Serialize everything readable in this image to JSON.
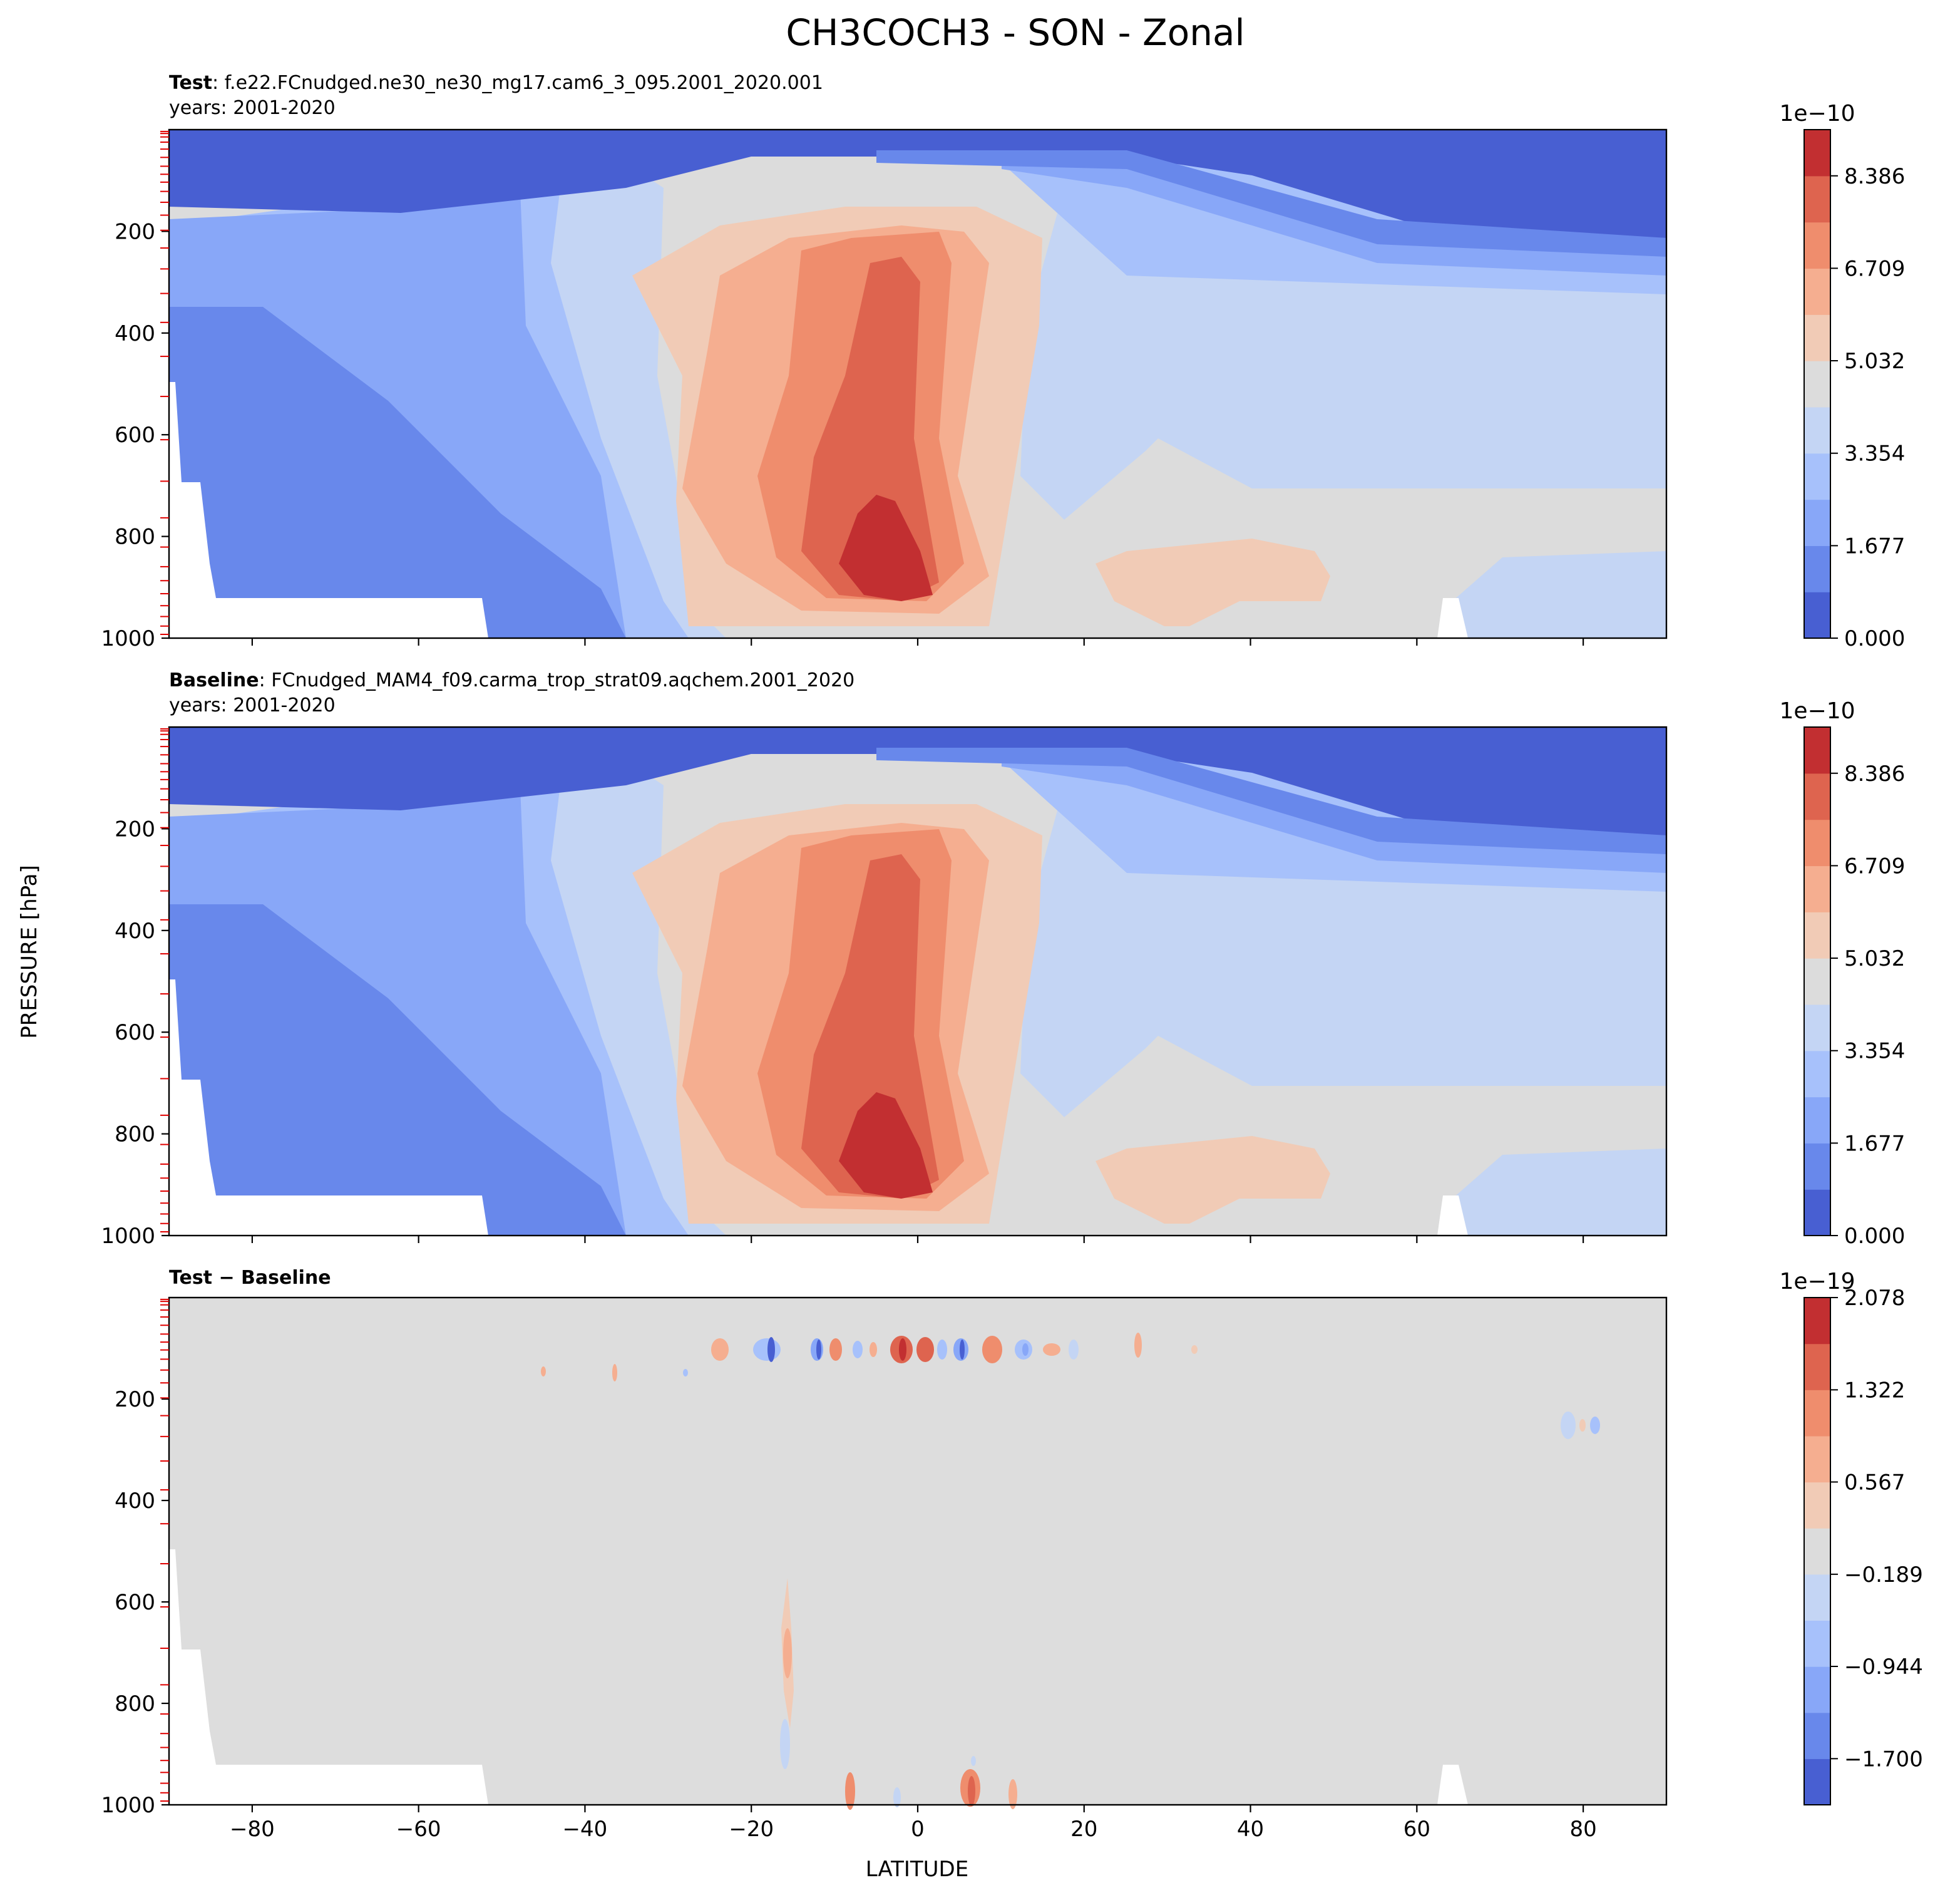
{
  "figure": {
    "title": "CH3COCH3 - SON - Zonal",
    "ylabel": "PRESSURE [hPa]",
    "xlabel": "LATITUDE"
  },
  "chart_data": [
    {
      "type": "heatmap",
      "panel": "test",
      "title_bold": "Test",
      "title_rest": ": f.e22.FCnudged.ne30_ne30_mg17.cam6_3_095.2001_2020.001",
      "subtitle": "years: 2001-2020",
      "x_ticks": [
        "−80",
        "−60",
        "−40",
        "−20",
        "0",
        "20",
        "40",
        "60",
        "80"
      ],
      "x_tick_values": [
        -80,
        -60,
        -40,
        -20,
        0,
        20,
        40,
        60,
        80
      ],
      "xlim": [
        -90,
        90
      ],
      "y_ticks": [
        "200",
        "400",
        "600",
        "800",
        "1000"
      ],
      "y_tick_values": [
        200,
        400,
        600,
        800,
        1000
      ],
      "ylim": [
        1000,
        0
      ],
      "colorbar": {
        "exponent": "1e−10",
        "tick_labels": [
          "0.000",
          "1.677",
          "3.354",
          "5.032",
          "6.709",
          "8.386"
        ],
        "tick_values": [
          0.0,
          1.677,
          3.354,
          5.032,
          6.709,
          8.386
        ],
        "range": [
          0.0,
          9.224
        ],
        "levels": 11
      }
    },
    {
      "type": "heatmap",
      "panel": "baseline",
      "title_bold": "Baseline",
      "title_rest": ": FCnudged_MAM4_f09.carma_trop_strat09.aqchem.2001_2020",
      "subtitle": "years: 2001-2020",
      "x_ticks": [
        "−80",
        "−60",
        "−40",
        "−20",
        "0",
        "20",
        "40",
        "60",
        "80"
      ],
      "x_tick_values": [
        -80,
        -60,
        -40,
        -20,
        0,
        20,
        40,
        60,
        80
      ],
      "xlim": [
        -90,
        90
      ],
      "y_ticks": [
        "200",
        "400",
        "600",
        "800",
        "1000"
      ],
      "y_tick_values": [
        200,
        400,
        600,
        800,
        1000
      ],
      "ylim": [
        1000,
        0
      ],
      "colorbar": {
        "exponent": "1e−10",
        "tick_labels": [
          "0.000",
          "1.677",
          "3.354",
          "5.032",
          "6.709",
          "8.386"
        ],
        "tick_values": [
          0.0,
          1.677,
          3.354,
          5.032,
          6.709,
          8.386
        ],
        "range": [
          0.0,
          9.224
        ],
        "levels": 11
      }
    },
    {
      "type": "heatmap",
      "panel": "diff",
      "title_bold": "Test − Baseline",
      "title_rest": "",
      "subtitle": "",
      "x_ticks": [
        "−80",
        "−60",
        "−40",
        "−20",
        "0",
        "20",
        "40",
        "60",
        "80"
      ],
      "x_tick_values": [
        -80,
        -60,
        -40,
        -20,
        0,
        20,
        40,
        60,
        80
      ],
      "xlim": [
        -90,
        90
      ],
      "y_ticks": [
        "200",
        "400",
        "600",
        "800",
        "1000"
      ],
      "y_tick_values": [
        200,
        400,
        600,
        800,
        1000
      ],
      "ylim": [
        1000,
        0
      ],
      "colorbar": {
        "exponent": "1e−19",
        "tick_labels": [
          "−1.700",
          "−0.944",
          "−0.189",
          "0.567",
          "1.322",
          "2.078"
        ],
        "tick_values": [
          -1.7,
          -0.944,
          -0.189,
          0.567,
          1.322,
          2.078
        ],
        "range": [
          -2.078,
          2.078
        ],
        "levels": 11
      }
    }
  ],
  "colors": {
    "levels": [
      "#485fd2",
      "#6888eb",
      "#88a7f8",
      "#a7c1fb",
      "#c4d5f4",
      "#dcdcdc",
      "#f1cbb6",
      "#f5ae90",
      "#ef8d6d",
      "#de644f",
      "#c22f31"
    ],
    "diff_background": "#dddddd",
    "missing": "#ffffff",
    "level_ticks": "#e00000"
  }
}
